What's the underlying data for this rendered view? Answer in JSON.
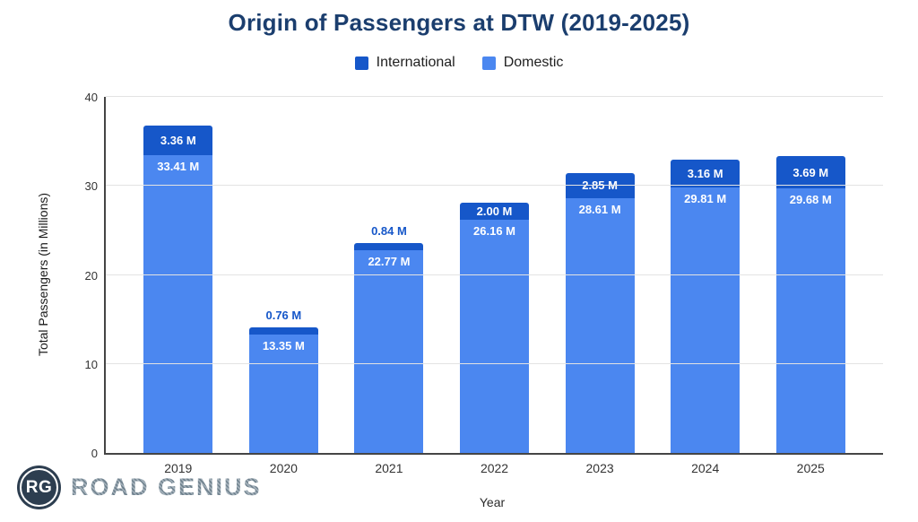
{
  "title": {
    "text": "Origin of Passengers at DTW (2019-2025)"
  },
  "legend": {
    "items": [
      {
        "label": "International",
        "color": "#1657c9"
      },
      {
        "label": "Domestic",
        "color": "#4b87f0"
      }
    ]
  },
  "chart_data": {
    "type": "bar",
    "stacked": true,
    "title": "Origin of Passengers at DTW (2019-2025)",
    "xlabel": "Year",
    "ylabel": "Total Passengers (in Millions)",
    "ylim": [
      0,
      40
    ],
    "yticks": [
      0,
      10,
      20,
      30,
      40
    ],
    "grid": true,
    "legend_position": "top",
    "categories": [
      "2019",
      "2020",
      "2021",
      "2022",
      "2023",
      "2024",
      "2025"
    ],
    "series": [
      {
        "name": "International",
        "color": "#1657c9",
        "values": [
          3.36,
          0.76,
          0.84,
          2.0,
          2.85,
          3.16,
          3.69
        ],
        "labels": [
          "3.36 M",
          "0.76 M",
          "0.84 M",
          "2.00 M",
          "2.85 M",
          "3.16 M",
          "3.69 M"
        ],
        "label_position": [
          "inside",
          "above",
          "above",
          "inside",
          "inside",
          "inside",
          "inside"
        ]
      },
      {
        "name": "Domestic",
        "color": "#4b87f0",
        "values": [
          33.41,
          13.35,
          22.77,
          26.16,
          28.61,
          29.81,
          29.68
        ],
        "labels": [
          "33.41 M",
          "13.35 M",
          "22.77 M",
          "26.16 M",
          "28.61 M",
          "29.81 M",
          "29.68 M"
        ],
        "label_position": [
          "inside",
          "inside",
          "inside",
          "inside",
          "inside",
          "inside",
          "inside"
        ]
      }
    ]
  },
  "branding": {
    "logo_initials": "RG",
    "name": "ROAD GENIUS"
  },
  "colors": {
    "title": "#1b3e6e",
    "international": "#1657c9",
    "domestic": "#4b87f0",
    "gridline": "#e3e3e3",
    "axis_line": "#454545"
  }
}
